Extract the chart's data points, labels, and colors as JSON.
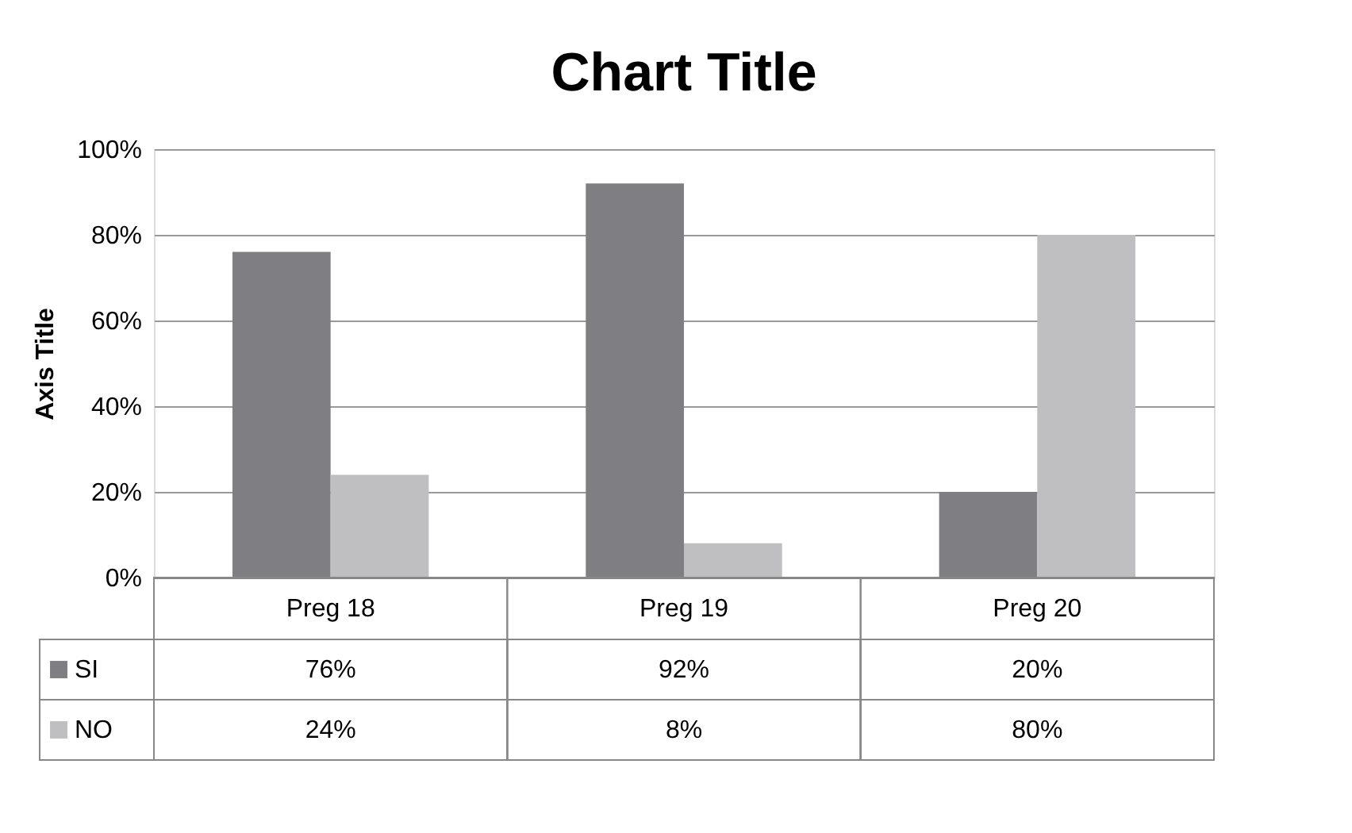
{
  "chart_data": {
    "type": "bar",
    "title": "Chart Title",
    "ylabel": "Axis Title",
    "categories": [
      "Preg 18",
      "Preg 19",
      "Preg 20"
    ],
    "series": [
      {
        "name": "SI",
        "color": "#7f7f83",
        "values": [
          76,
          92,
          20
        ],
        "value_labels": [
          "76%",
          "92%",
          "20%"
        ]
      },
      {
        "name": "NO",
        "color": "#bfbfc1",
        "values": [
          24,
          8,
          80
        ],
        "value_labels": [
          "24%",
          "8%",
          "80%"
        ]
      }
    ],
    "ylim": [
      0,
      100
    ],
    "yticks": [
      {
        "value": 0,
        "label": "0%"
      },
      {
        "value": 20,
        "label": "20%"
      },
      {
        "value": 40,
        "label": "40%"
      },
      {
        "value": 60,
        "label": "60%"
      },
      {
        "value": 80,
        "label": "80%"
      },
      {
        "value": 100,
        "label": "100%"
      }
    ],
    "grid": "y",
    "legend": "bottom left"
  }
}
